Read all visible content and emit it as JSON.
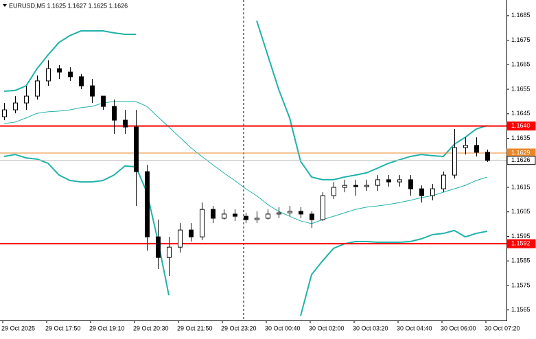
{
  "chart_data": {
    "type": "candlestick",
    "title": "EURUSD,M5  1.1625 1.1627 1.1625 1.1626",
    "ylim": [
      1.15607,
      1.16914
    ],
    "yticks": [
      1.1685,
      1.1675,
      1.1665,
      1.1655,
      1.1645,
      1.1635,
      1.1615,
      1.1605,
      1.1595,
      1.1585,
      1.1575,
      1.1565
    ],
    "xticks": [
      {
        "value": 0,
        "label": "29 Oct 2025"
      },
      {
        "value": 4,
        "label": "29 Oct 17:50"
      },
      {
        "value": 8,
        "label": "29 Oct 19:10"
      },
      {
        "value": 12,
        "label": "29 Oct 20:30"
      },
      {
        "value": 16,
        "label": "29 Oct 21:50"
      },
      {
        "value": 20,
        "label": "29 Oct 23:20"
      },
      {
        "value": 24,
        "label": "30 Oct 00:40"
      },
      {
        "value": 28,
        "label": "30 Oct 02:00"
      },
      {
        "value": 32,
        "label": "30 Oct 03:20"
      },
      {
        "value": 36,
        "label": "30 Oct 04:40"
      },
      {
        "value": 40,
        "label": "30 Oct 06:00"
      },
      {
        "value": 44,
        "label": "30 Oct 07:20"
      }
    ],
    "candle_color": "#000000",
    "open": [
      1.16438,
      1.16466,
      1.16494,
      1.16522,
      1.16584,
      1.16634,
      1.1662,
      1.16601,
      1.16564,
      1.16522,
      1.1648,
      1.16424,
      1.16396,
      1.16214,
      1.15948,
      1.15864,
      1.15906,
      1.15976,
      1.15948,
      1.1606,
      1.16024,
      1.16041,
      1.16032,
      1.16018,
      1.16024,
      1.16041,
      1.16046,
      1.16052,
      1.16041,
      1.16018,
      1.16116,
      1.1615,
      1.16158,
      1.16153,
      1.16158,
      1.16181,
      1.16172,
      1.16181,
      1.16144,
      1.16116,
      1.16144,
      1.162,
      1.16312,
      1.16321,
      1.16293
    ],
    "high": [
      1.16494,
      1.16522,
      1.16564,
      1.16606,
      1.16668,
      1.16648,
      1.1664,
      1.16612,
      1.16592,
      1.16522,
      1.16508,
      1.16466,
      1.16466,
      1.16242,
      1.16018,
      1.15948,
      1.16004,
      1.16004,
      1.16088,
      1.16074,
      1.1606,
      1.1606,
      1.16046,
      1.16052,
      1.1606,
      1.16069,
      1.16074,
      1.16069,
      1.16052,
      1.1613,
      1.16172,
      1.16181,
      1.16181,
      1.16181,
      1.162,
      1.162,
      1.162,
      1.162,
      1.16158,
      1.16164,
      1.16214,
      1.16388,
      1.16354,
      1.16354,
      1.16304
    ],
    "low": [
      1.16424,
      1.16452,
      1.16466,
      1.16508,
      1.16564,
      1.16592,
      1.16584,
      1.1655,
      1.16494,
      1.16466,
      1.16368,
      1.16368,
      1.16074,
      1.15892,
      1.15817,
      1.15789,
      1.15884,
      1.15929,
      1.15934,
      1.16004,
      1.16018,
      1.16013,
      1.16004,
      1.16004,
      1.16018,
      1.16024,
      1.16032,
      1.16024,
      1.15985,
      1.16013,
      1.16102,
      1.1613,
      1.16116,
      1.16136,
      1.16136,
      1.16153,
      1.16153,
      1.16116,
      1.16088,
      1.16097,
      1.1613,
      1.16186,
      1.16284,
      1.16276,
      1.16254
    ],
    "close": [
      1.16466,
      1.16494,
      1.16522,
      1.16584,
      1.16634,
      1.1662,
      1.16601,
      1.16564,
      1.16522,
      1.1648,
      1.16424,
      1.16396,
      1.16214,
      1.15948,
      1.15864,
      1.15906,
      1.15976,
      1.15948,
      1.1606,
      1.16024,
      1.16041,
      1.16032,
      1.16018,
      1.16024,
      1.16041,
      1.16046,
      1.16052,
      1.16041,
      1.16018,
      1.16116,
      1.1615,
      1.16158,
      1.16153,
      1.16158,
      1.16181,
      1.16172,
      1.16181,
      1.16144,
      1.16116,
      1.16144,
      1.162,
      1.16312,
      1.16321,
      1.16293,
      1.1626
    ],
    "series": [
      {
        "color": "#20b2aa",
        "values": [
          1.16542,
          1.16545,
          1.16564,
          1.16634,
          1.1669,
          1.16741,
          1.16769,
          1.16788,
          1.16788,
          1.16788,
          1.1678,
          1.16774,
          1.16774,
          null,
          null,
          null,
          null,
          null,
          null,
          null,
          null,
          null,
          null,
          1.1683,
          1.1669,
          1.1655,
          1.16433,
          1.16256,
          1.16192,
          1.16181,
          1.16181,
          1.16192,
          1.162,
          1.16209,
          1.16228,
          1.16248,
          1.16262,
          1.16276,
          1.16284,
          1.16279,
          1.16276,
          1.16326,
          1.16354,
          1.16388,
          1.16402
        ]
      },
      {
        "color": "#20b2aa",
        "values": [
          1.1641,
          1.16416,
          1.16433,
          1.16452,
          1.16458,
          1.16461,
          1.16466,
          1.16475,
          1.1648,
          1.16494,
          1.165,
          1.165,
          1.165,
          1.1648,
          1.16438,
          1.16396,
          1.16354,
          1.16312,
          1.16276,
          1.16242,
          1.16209,
          1.16178,
          1.16144,
          1.16116,
          1.1608,
          1.16052,
          1.16032,
          1.16013,
          1.16002,
          1.16018,
          1.16032,
          1.16046,
          1.1606,
          1.16069,
          1.16074,
          1.1608,
          1.16088,
          1.16097,
          1.16108,
          1.16116,
          1.1613,
          1.16144,
          1.16158,
          1.16178,
          1.16192
        ]
      },
      {
        "color": "#20b2aa",
        "values": [
          1.16276,
          1.16284,
          1.1627,
          1.16265,
          1.16248,
          1.162,
          1.16178,
          1.16172,
          1.16172,
          1.16178,
          1.162,
          1.16237,
          1.16234,
          1.1613,
          1.15934,
          1.1571,
          null,
          null,
          null,
          null,
          null,
          null,
          null,
          null,
          null,
          null,
          null,
          1.15626,
          1.15794,
          1.1585,
          1.15901,
          1.1592,
          1.15929,
          1.15929,
          1.15926,
          1.15926,
          1.15926,
          1.15929,
          1.1594,
          1.15957,
          1.15962,
          1.15974,
          1.15948,
          1.15962,
          1.15971
        ]
      }
    ],
    "levels": [
      {
        "value": 1.164,
        "label": "1.1640",
        "color": "#ff0000"
      },
      {
        "value": 1.1629,
        "label": "1.1629",
        "color": "#e8872a"
      },
      {
        "value": 1.1626,
        "label": "1.1626",
        "color": "#c0c0c0"
      },
      {
        "value": 1.1592,
        "label": "1.1592",
        "color": "#ff0000"
      }
    ]
  }
}
